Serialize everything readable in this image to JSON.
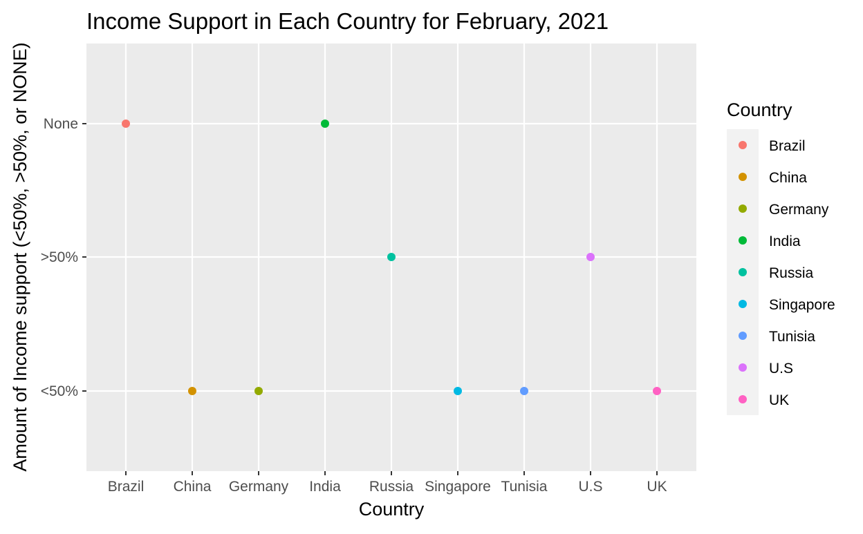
{
  "chart_data": {
    "type": "scatter",
    "title": "Income Support in Each Country for February, 2021",
    "xlabel": "Country",
    "ylabel": "Amount of Income support (<50%, >50%, or NONE)",
    "x_categories": [
      "Brazil",
      "China",
      "Germany",
      "India",
      "Russia",
      "Singapore",
      "Tunisia",
      "U.S",
      "UK"
    ],
    "y_categories": [
      "<50%",
      ">50%",
      "None"
    ],
    "points": [
      {
        "x": "Brazil",
        "y": "None"
      },
      {
        "x": "China",
        "y": "<50%"
      },
      {
        "x": "Germany",
        "y": "<50%"
      },
      {
        "x": "India",
        "y": "None"
      },
      {
        "x": "Russia",
        "y": ">50%"
      },
      {
        "x": "Singapore",
        "y": "<50%"
      },
      {
        "x": "Tunisia",
        "y": "<50%"
      },
      {
        "x": "U.S",
        "y": ">50%"
      },
      {
        "x": "UK",
        "y": "<50%"
      }
    ],
    "legend": {
      "title": "Country",
      "position": "right",
      "entries": [
        "Brazil",
        "China",
        "Germany",
        "India",
        "Russia",
        "Singapore",
        "Tunisia",
        "U.S",
        "UK"
      ]
    },
    "colors": {
      "Brazil": "#F8766D",
      "China": "#D39200",
      "Germany": "#93AA00",
      "India": "#00BA38",
      "Russia": "#00C19F",
      "Singapore": "#00B9E3",
      "Tunisia": "#619CFF",
      "U.S": "#DB72FB",
      "UK": "#FF61C3"
    },
    "panel_background": "#EBEBEB",
    "grid": true
  }
}
